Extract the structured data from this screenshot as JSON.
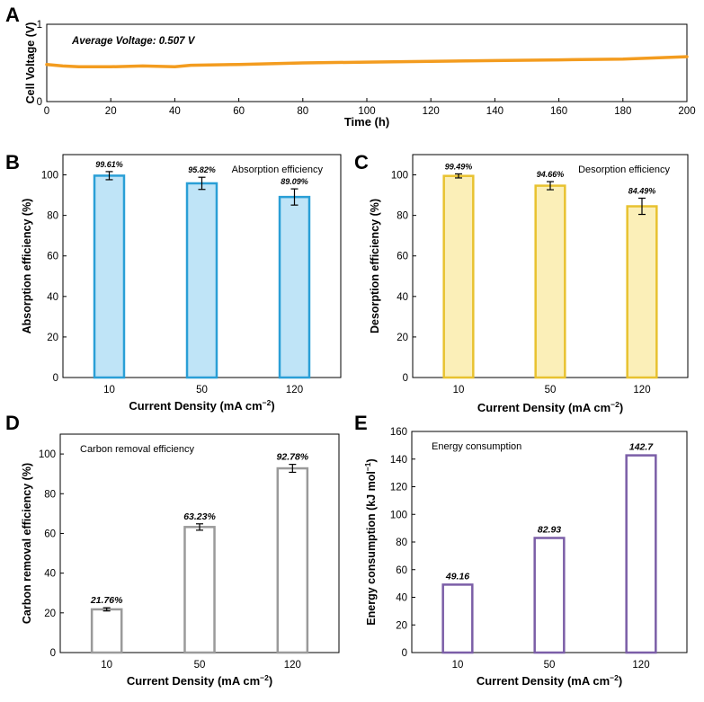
{
  "chart_data": [
    {
      "panel": "A",
      "type": "line",
      "annotation": "Average Voltage: 0.507 V",
      "xlabel": "Time (h)",
      "ylabel": "Cell Voltage (V)",
      "xlim": [
        0,
        200
      ],
      "ylim": [
        0,
        1
      ],
      "xticks": [
        "0",
        "20",
        "40",
        "60",
        "80",
        "100",
        "120",
        "140",
        "160",
        "180",
        "200"
      ],
      "yticks": [
        "0",
        "1"
      ],
      "color": "#f39c1f",
      "series": [
        {
          "x": [
            0,
            5,
            10,
            20,
            30,
            40,
            45,
            60,
            80,
            100,
            120,
            140,
            160,
            180,
            200
          ],
          "y": [
            0.48,
            0.46,
            0.45,
            0.45,
            0.46,
            0.45,
            0.47,
            0.48,
            0.5,
            0.51,
            0.52,
            0.53,
            0.54,
            0.55,
            0.58
          ]
        }
      ]
    },
    {
      "panel": "B",
      "type": "bar",
      "inner_label": "Absorption efficiency",
      "xlabel": "Current Density (mA cm",
      "xlabel_sup": "−2",
      "xlabel_end": ")",
      "ylabel": "Absorption efficiency (%)",
      "ylim": [
        0,
        110
      ],
      "yticks": [
        "0",
        "20",
        "40",
        "60",
        "80",
        "100"
      ],
      "categories": [
        "10",
        "50",
        "120"
      ],
      "values": [
        99.61,
        95.82,
        89.09
      ],
      "errors": [
        2,
        3,
        4
      ],
      "value_labels": [
        "99.61%",
        "95.82%",
        "89.09%"
      ],
      "fill": "#bfe4f7",
      "stroke": "#2a9fd6"
    },
    {
      "panel": "C",
      "type": "bar",
      "inner_label": "Desorption efficiency",
      "xlabel": "Current Density (mA cm",
      "xlabel_sup": "−2",
      "xlabel_end": ")",
      "ylabel": "Desorption efficiency (%)",
      "ylim": [
        0,
        110
      ],
      "yticks": [
        "0",
        "20",
        "40",
        "60",
        "80",
        "100"
      ],
      "categories": [
        "10",
        "50",
        "120"
      ],
      "values": [
        99.49,
        94.66,
        84.49
      ],
      "errors": [
        1,
        2,
        4
      ],
      "value_labels": [
        "99.49%",
        "94.66%",
        "84.49%"
      ],
      "fill": "#fbefb8",
      "stroke": "#e8c230"
    },
    {
      "panel": "D",
      "type": "bar",
      "inner_label": "Carbon removal efficiency",
      "xlabel": "Current Density (mA cm",
      "xlabel_sup": "−2",
      "xlabel_end": ")",
      "ylabel": "Carbon removal efficiency (%)",
      "ylim": [
        0,
        110
      ],
      "yticks": [
        "0",
        "20",
        "40",
        "60",
        "80",
        "100"
      ],
      "categories": [
        "10",
        "50",
        "120"
      ],
      "values": [
        21.76,
        63.23,
        92.78
      ],
      "errors": [
        0.8,
        1.6,
        2
      ],
      "value_labels": [
        "21.76%",
        "63.23%",
        "92.78%"
      ],
      "fill": "#ffffff",
      "stroke": "#9a9a9a"
    },
    {
      "panel": "E",
      "type": "bar",
      "inner_label": "Energy consumption",
      "xlabel": "Current Density (mA cm",
      "xlabel_sup": "−2",
      "xlabel_end": ")",
      "ylabel": "Energy consumption (kJ mol",
      "ylabel_sup": "−1",
      "ylabel_end": ")",
      "ylim": [
        0,
        160
      ],
      "yticks": [
        "0",
        "20",
        "40",
        "60",
        "80",
        "100",
        "120",
        "140",
        "160"
      ],
      "categories": [
        "10",
        "50",
        "120"
      ],
      "values": [
        49.16,
        82.93,
        142.7
      ],
      "errors": [
        0,
        0,
        0
      ],
      "value_labels": [
        "49.16",
        "82.93",
        "142.7"
      ],
      "fill": "#ffffff",
      "stroke": "#7b5ea7"
    }
  ]
}
